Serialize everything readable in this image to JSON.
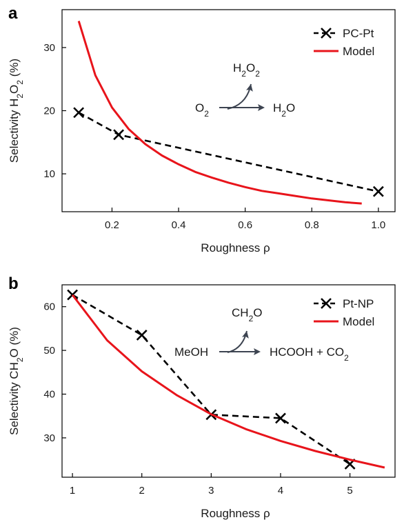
{
  "chart_data": [
    {
      "panel": "a",
      "type": "line",
      "xlabel": "Roughness ρ",
      "ylabel": {
        "prefix": "Selectivity H",
        "sub1": "2",
        "mid": "O",
        "sub2": "2",
        "suffix": " (%)"
      },
      "xlim": [
        0.05,
        1.05
      ],
      "ylim": [
        4,
        36
      ],
      "xticks": [
        0.2,
        0.4,
        0.6,
        0.8,
        1.0
      ],
      "xtick_labels": [
        "0.2",
        "0.4",
        "0.6",
        "0.8",
        "1.0"
      ],
      "yticks": [
        10,
        20,
        30
      ],
      "ytick_labels": [
        "10",
        "20",
        "30"
      ],
      "grid": false,
      "legend_position": "top-right",
      "series": [
        {
          "name": "PC-Pt",
          "style": "dashed-marker-x",
          "color": "#000000",
          "x": [
            0.1,
            0.22,
            1.0
          ],
          "y": [
            19.7,
            16.2,
            7.2
          ]
        },
        {
          "name": "Model",
          "style": "solid",
          "color": "#e8141b",
          "x": [
            0.1,
            0.15,
            0.2,
            0.25,
            0.3,
            0.35,
            0.4,
            0.45,
            0.5,
            0.55,
            0.6,
            0.65,
            0.7,
            0.75,
            0.8,
            0.85,
            0.9,
            0.95
          ],
          "y": [
            34.2,
            25.6,
            20.5,
            17.1,
            14.7,
            12.9,
            11.5,
            10.3,
            9.4,
            8.6,
            7.9,
            7.3,
            6.9,
            6.5,
            6.1,
            5.8,
            5.5,
            5.3
          ]
        }
      ],
      "reaction": {
        "reactant": {
          "base": "O",
          "sub": "2"
        },
        "product_main": {
          "base": "H",
          "sub": "2",
          "rest": "O"
        },
        "product_side": {
          "base": "H",
          "sub1": "2",
          "mid": "O",
          "sub2": "2"
        }
      }
    },
    {
      "panel": "b",
      "type": "line",
      "xlabel": "Roughness ρ",
      "ylabel": {
        "prefix": "Selectivity CH",
        "sub1": "2",
        "suffix": "O (%)"
      },
      "xlim": [
        0.85,
        5.65
      ],
      "ylim": [
        21,
        65
      ],
      "xticks": [
        1,
        2,
        3,
        4,
        5
      ],
      "xtick_labels": [
        "1",
        "2",
        "3",
        "4",
        "5"
      ],
      "yticks": [
        30,
        40,
        50,
        60
      ],
      "ytick_labels": [
        "30",
        "40",
        "50",
        "60"
      ],
      "grid": false,
      "legend_position": "top-right",
      "series": [
        {
          "name": "Pt-NP",
          "style": "dashed-marker-x",
          "color": "#000000",
          "x": [
            1,
            2,
            3,
            4,
            5
          ],
          "y": [
            62.7,
            53.5,
            35.3,
            34.5,
            24.0
          ]
        },
        {
          "name": "Model",
          "style": "solid",
          "color": "#e8141b",
          "x": [
            1.0,
            1.5,
            2.0,
            2.5,
            3.0,
            3.5,
            4.0,
            4.5,
            5.0,
            5.5
          ],
          "y": [
            62.7,
            52.3,
            45.2,
            39.8,
            35.4,
            32.0,
            29.3,
            27.0,
            25.0,
            23.2
          ]
        }
      ],
      "reaction": {
        "reactant": {
          "base": "MeOH"
        },
        "product_main": {
          "base": "HCOOH + CO",
          "sub": "2"
        },
        "product_side": {
          "base": "CH",
          "sub": "2",
          "rest": "O"
        }
      }
    }
  ]
}
